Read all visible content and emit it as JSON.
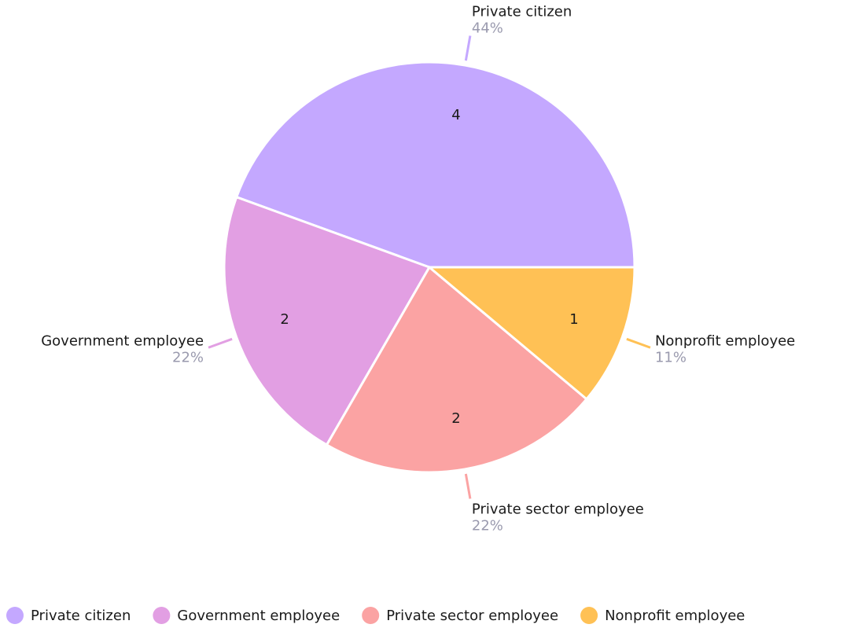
{
  "chart_data": {
    "type": "pie",
    "categories": [
      "Private citizen",
      "Government employee",
      "Private sector employee",
      "Nonprofit employee"
    ],
    "values": [
      4,
      2,
      2,
      1
    ],
    "percent_labels": [
      "44%",
      "22%",
      "22%",
      "11%"
    ],
    "colors": [
      "#c4a8ff",
      "#e29fe3",
      "#fba3a3",
      "#ffc155"
    ],
    "legend": "bottom"
  }
}
